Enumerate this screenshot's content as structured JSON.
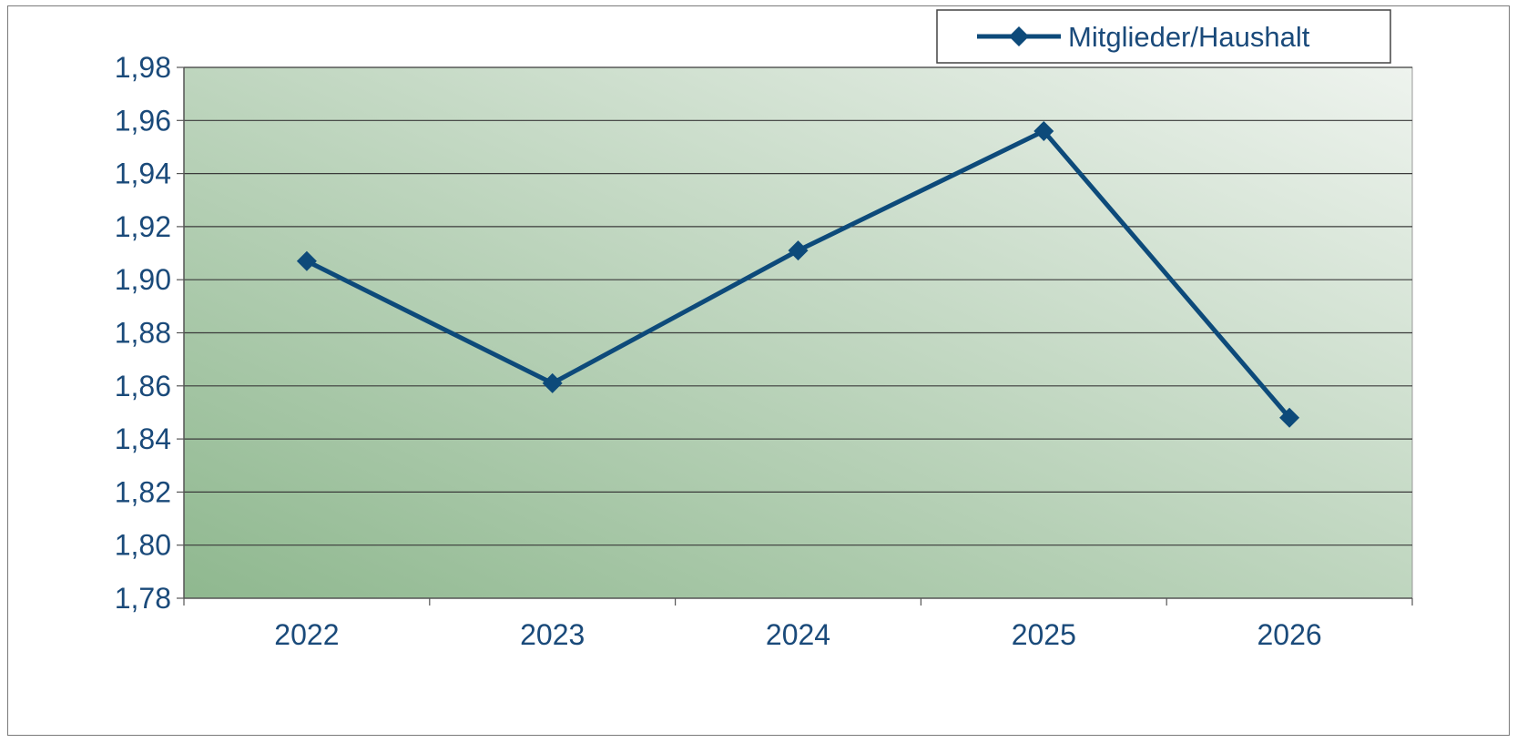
{
  "chart_data": {
    "type": "line",
    "title": "",
    "xlabel": "",
    "ylabel": "",
    "categories": [
      "2022",
      "2023",
      "2024",
      "2025",
      "2026"
    ],
    "series": [
      {
        "name": "Mitglieder/Haushalt",
        "values": [
          1.907,
          1.861,
          1.911,
          1.956,
          1.848
        ]
      }
    ],
    "ylim": [
      1.78,
      1.98
    ],
    "yticks": [
      "1,78",
      "1,80",
      "1,82",
      "1,84",
      "1,86",
      "1,88",
      "1,90",
      "1,92",
      "1,94",
      "1,96",
      "1,98"
    ],
    "grid": true,
    "legend_position": "top-right",
    "colors": {
      "series_line": "#0d4a7a",
      "tick_text": "#1a4a7a",
      "gridline": "#3a3a3a",
      "plot_bg_dark": "#8fb88f",
      "plot_bg_light": "#eef3ee"
    }
  }
}
